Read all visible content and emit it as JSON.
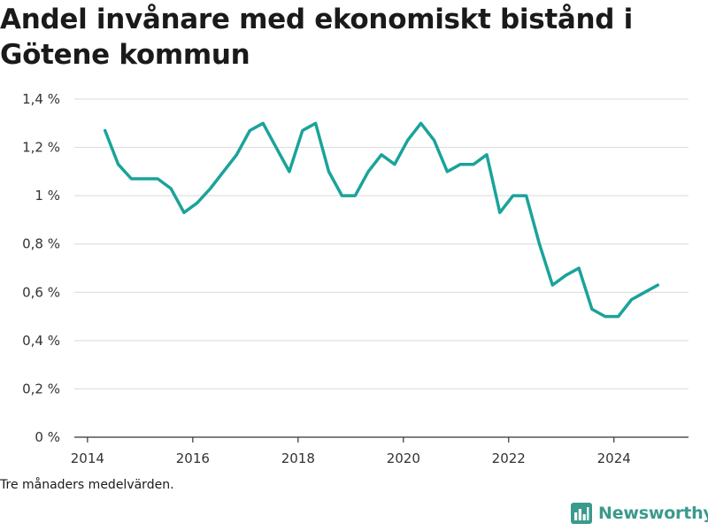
{
  "title": "Andel invånare med ekonomiskt bistånd i Götene kommun",
  "note": "Tre månaders medelvärden.",
  "brand": {
    "name": "Newsworthy",
    "icon": "bar-chart-logo-icon",
    "color": "#3a9a8c"
  },
  "chart_data": {
    "type": "line",
    "title": "Andel invånare med ekonomiskt bistånd i Götene kommun",
    "xlabel": "",
    "ylabel": "",
    "x_ticks": [
      "2014",
      "2016",
      "2018",
      "2020",
      "2022",
      "2024"
    ],
    "y_ticks": [
      "0 %",
      "0,2 %",
      "0,4 %",
      "0,6 %",
      "0,8 %",
      "1 %",
      "1,2 %",
      "1,4 %"
    ],
    "xlim": [
      "2013-10",
      "2025-06"
    ],
    "ylim": [
      0,
      1.4
    ],
    "grid": "horizontal",
    "color": "#1aa39a",
    "series": [
      {
        "x": [
          "2014-05",
          "2014-08",
          "2014-11",
          "2015-02",
          "2015-05",
          "2015-08",
          "2015-11",
          "2016-02",
          "2016-05",
          "2016-08",
          "2016-11",
          "2017-02",
          "2017-05",
          "2017-08",
          "2017-11",
          "2018-02",
          "2018-05",
          "2018-08",
          "2018-11",
          "2019-02",
          "2019-05",
          "2019-08",
          "2019-11",
          "2020-02",
          "2020-05",
          "2020-08",
          "2020-11",
          "2021-02",
          "2021-05",
          "2021-08",
          "2021-11",
          "2022-02",
          "2022-05",
          "2022-08",
          "2022-11",
          "2023-02",
          "2023-05",
          "2023-08",
          "2023-11",
          "2024-02",
          "2024-05",
          "2024-08",
          "2024-11"
        ],
        "values": [
          1.27,
          1.13,
          1.07,
          1.07,
          1.07,
          1.03,
          0.93,
          0.97,
          1.03,
          1.1,
          1.17,
          1.27,
          1.3,
          1.2,
          1.1,
          1.27,
          1.3,
          1.1,
          1.0,
          1.0,
          1.1,
          1.17,
          1.13,
          1.23,
          1.3,
          1.23,
          1.1,
          1.13,
          1.13,
          1.17,
          0.93,
          1.0,
          1.0,
          0.8,
          0.63,
          0.67,
          0.7,
          0.53,
          0.5,
          0.5,
          0.57,
          0.6,
          0.63
        ]
      }
    ]
  }
}
